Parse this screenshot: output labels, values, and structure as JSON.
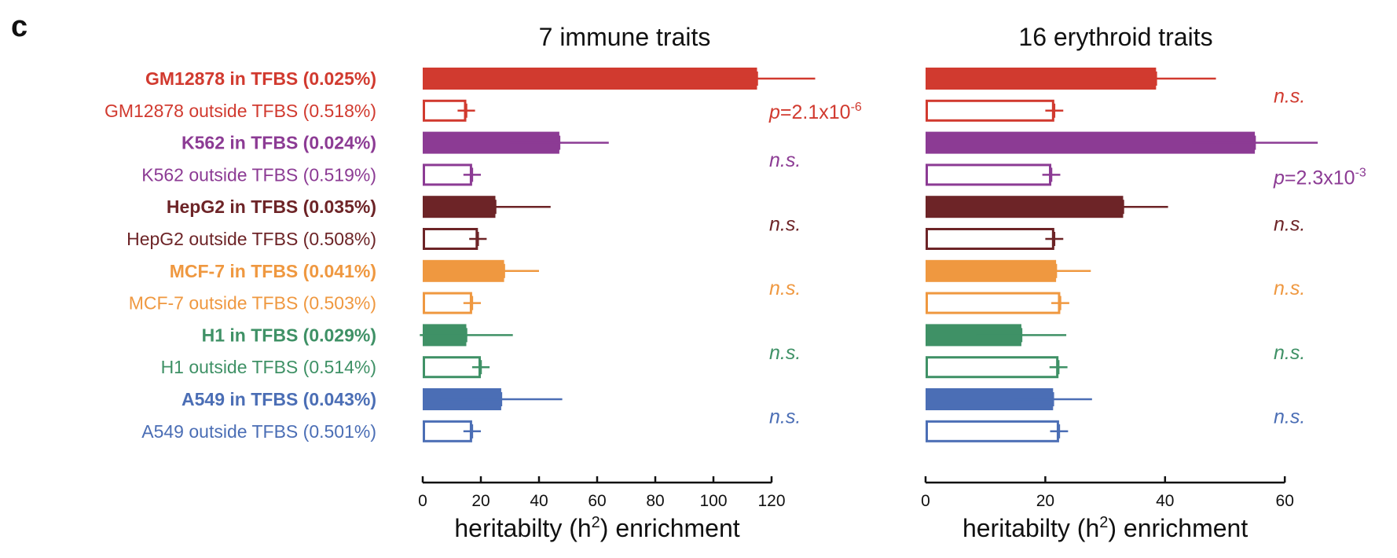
{
  "panel_letter": "c",
  "chart_data": [
    {
      "type": "bar",
      "orientation": "horizontal",
      "title": "7 immune traits",
      "xlabel": "heritabilty (h",
      "xlabel_sup": "2",
      "xlabel_end": ") enrichment",
      "xlim": [
        0,
        120
      ],
      "ticks": [
        "0",
        "20",
        "40",
        "60",
        "80",
        "100",
        "120"
      ],
      "tick_values": [
        0,
        20,
        40,
        60,
        80,
        100,
        120
      ],
      "values": [
        115,
        15,
        47,
        17,
        25,
        19,
        28,
        17,
        15,
        20,
        27,
        17
      ],
      "errors": [
        20,
        3,
        17,
        3,
        19,
        3,
        12,
        3,
        16,
        3,
        21,
        3
      ],
      "annotations": [
        {
          "pair": 0,
          "prefix": "p",
          "text": "=2.1x10",
          "sup": "-6"
        },
        {
          "pair": 1,
          "text": "n.s."
        },
        {
          "pair": 2,
          "text": "n.s."
        },
        {
          "pair": 3,
          "text": "n.s."
        },
        {
          "pair": 4,
          "text": "n.s."
        },
        {
          "pair": 5,
          "text": "n.s."
        }
      ]
    },
    {
      "type": "bar",
      "orientation": "horizontal",
      "title": "16 erythroid traits",
      "xlabel": "heritabilty (h",
      "xlabel_sup": "2",
      "xlabel_end": ") enrichment",
      "xlim": [
        0,
        60
      ],
      "ticks": [
        "0",
        "20",
        "40",
        "60"
      ],
      "tick_values": [
        0,
        20,
        40,
        60
      ],
      "values": [
        38.5,
        21.5,
        55,
        21,
        33,
        21.5,
        21.8,
        22.5,
        16,
        22.2,
        21.3,
        22.3
      ],
      "errors": [
        10,
        1.5,
        10.5,
        1.5,
        7.5,
        1.5,
        5.8,
        1.5,
        7.5,
        1.5,
        6.5,
        1.5
      ],
      "annotations": [
        {
          "pair": 0,
          "text": "n.s."
        },
        {
          "pair": 1,
          "prefix": "p",
          "text": "=2.3x10",
          "sup": "-3"
        },
        {
          "pair": 2,
          "text": "n.s."
        },
        {
          "pair": 3,
          "text": "n.s."
        },
        {
          "pair": 4,
          "text": "n.s."
        },
        {
          "pair": 5,
          "text": "n.s."
        }
      ]
    }
  ],
  "rows": [
    {
      "label": "GM12878 in TFBS (0.025%)",
      "bold": true,
      "filled": true,
      "color": "#d13a2f"
    },
    {
      "label": "GM12878 outside TFBS (0.518%)",
      "bold": false,
      "filled": false,
      "color": "#d13a2f"
    },
    {
      "label": "K562 in TFBS (0.024%)",
      "bold": true,
      "filled": true,
      "color": "#8c3b94"
    },
    {
      "label": "K562 outside TFBS (0.519%)",
      "bold": false,
      "filled": false,
      "color": "#8c3b94"
    },
    {
      "label": "HepG2 in TFBS (0.035%)",
      "bold": true,
      "filled": true,
      "color": "#6d2427"
    },
    {
      "label": "HepG2 outside TFBS (0.508%)",
      "bold": false,
      "filled": false,
      "color": "#6d2427"
    },
    {
      "label": "MCF-7 in TFBS (0.041%)",
      "bold": true,
      "filled": true,
      "color": "#ef9840"
    },
    {
      "label": "MCF-7 outside TFBS (0.503%)",
      "bold": false,
      "filled": false,
      "color": "#ef9840"
    },
    {
      "label": "H1 in TFBS (0.029%)",
      "bold": true,
      "filled": true,
      "color": "#3f9166"
    },
    {
      "label": "H1 outside TFBS (0.514%)",
      "bold": false,
      "filled": false,
      "color": "#3f9166"
    },
    {
      "label": "A549 in TFBS (0.043%)",
      "bold": true,
      "filled": true,
      "color": "#4b6eb5"
    },
    {
      "label": "A549 outside TFBS (0.501%)",
      "bold": false,
      "filled": false,
      "color": "#4b6eb5"
    }
  ]
}
